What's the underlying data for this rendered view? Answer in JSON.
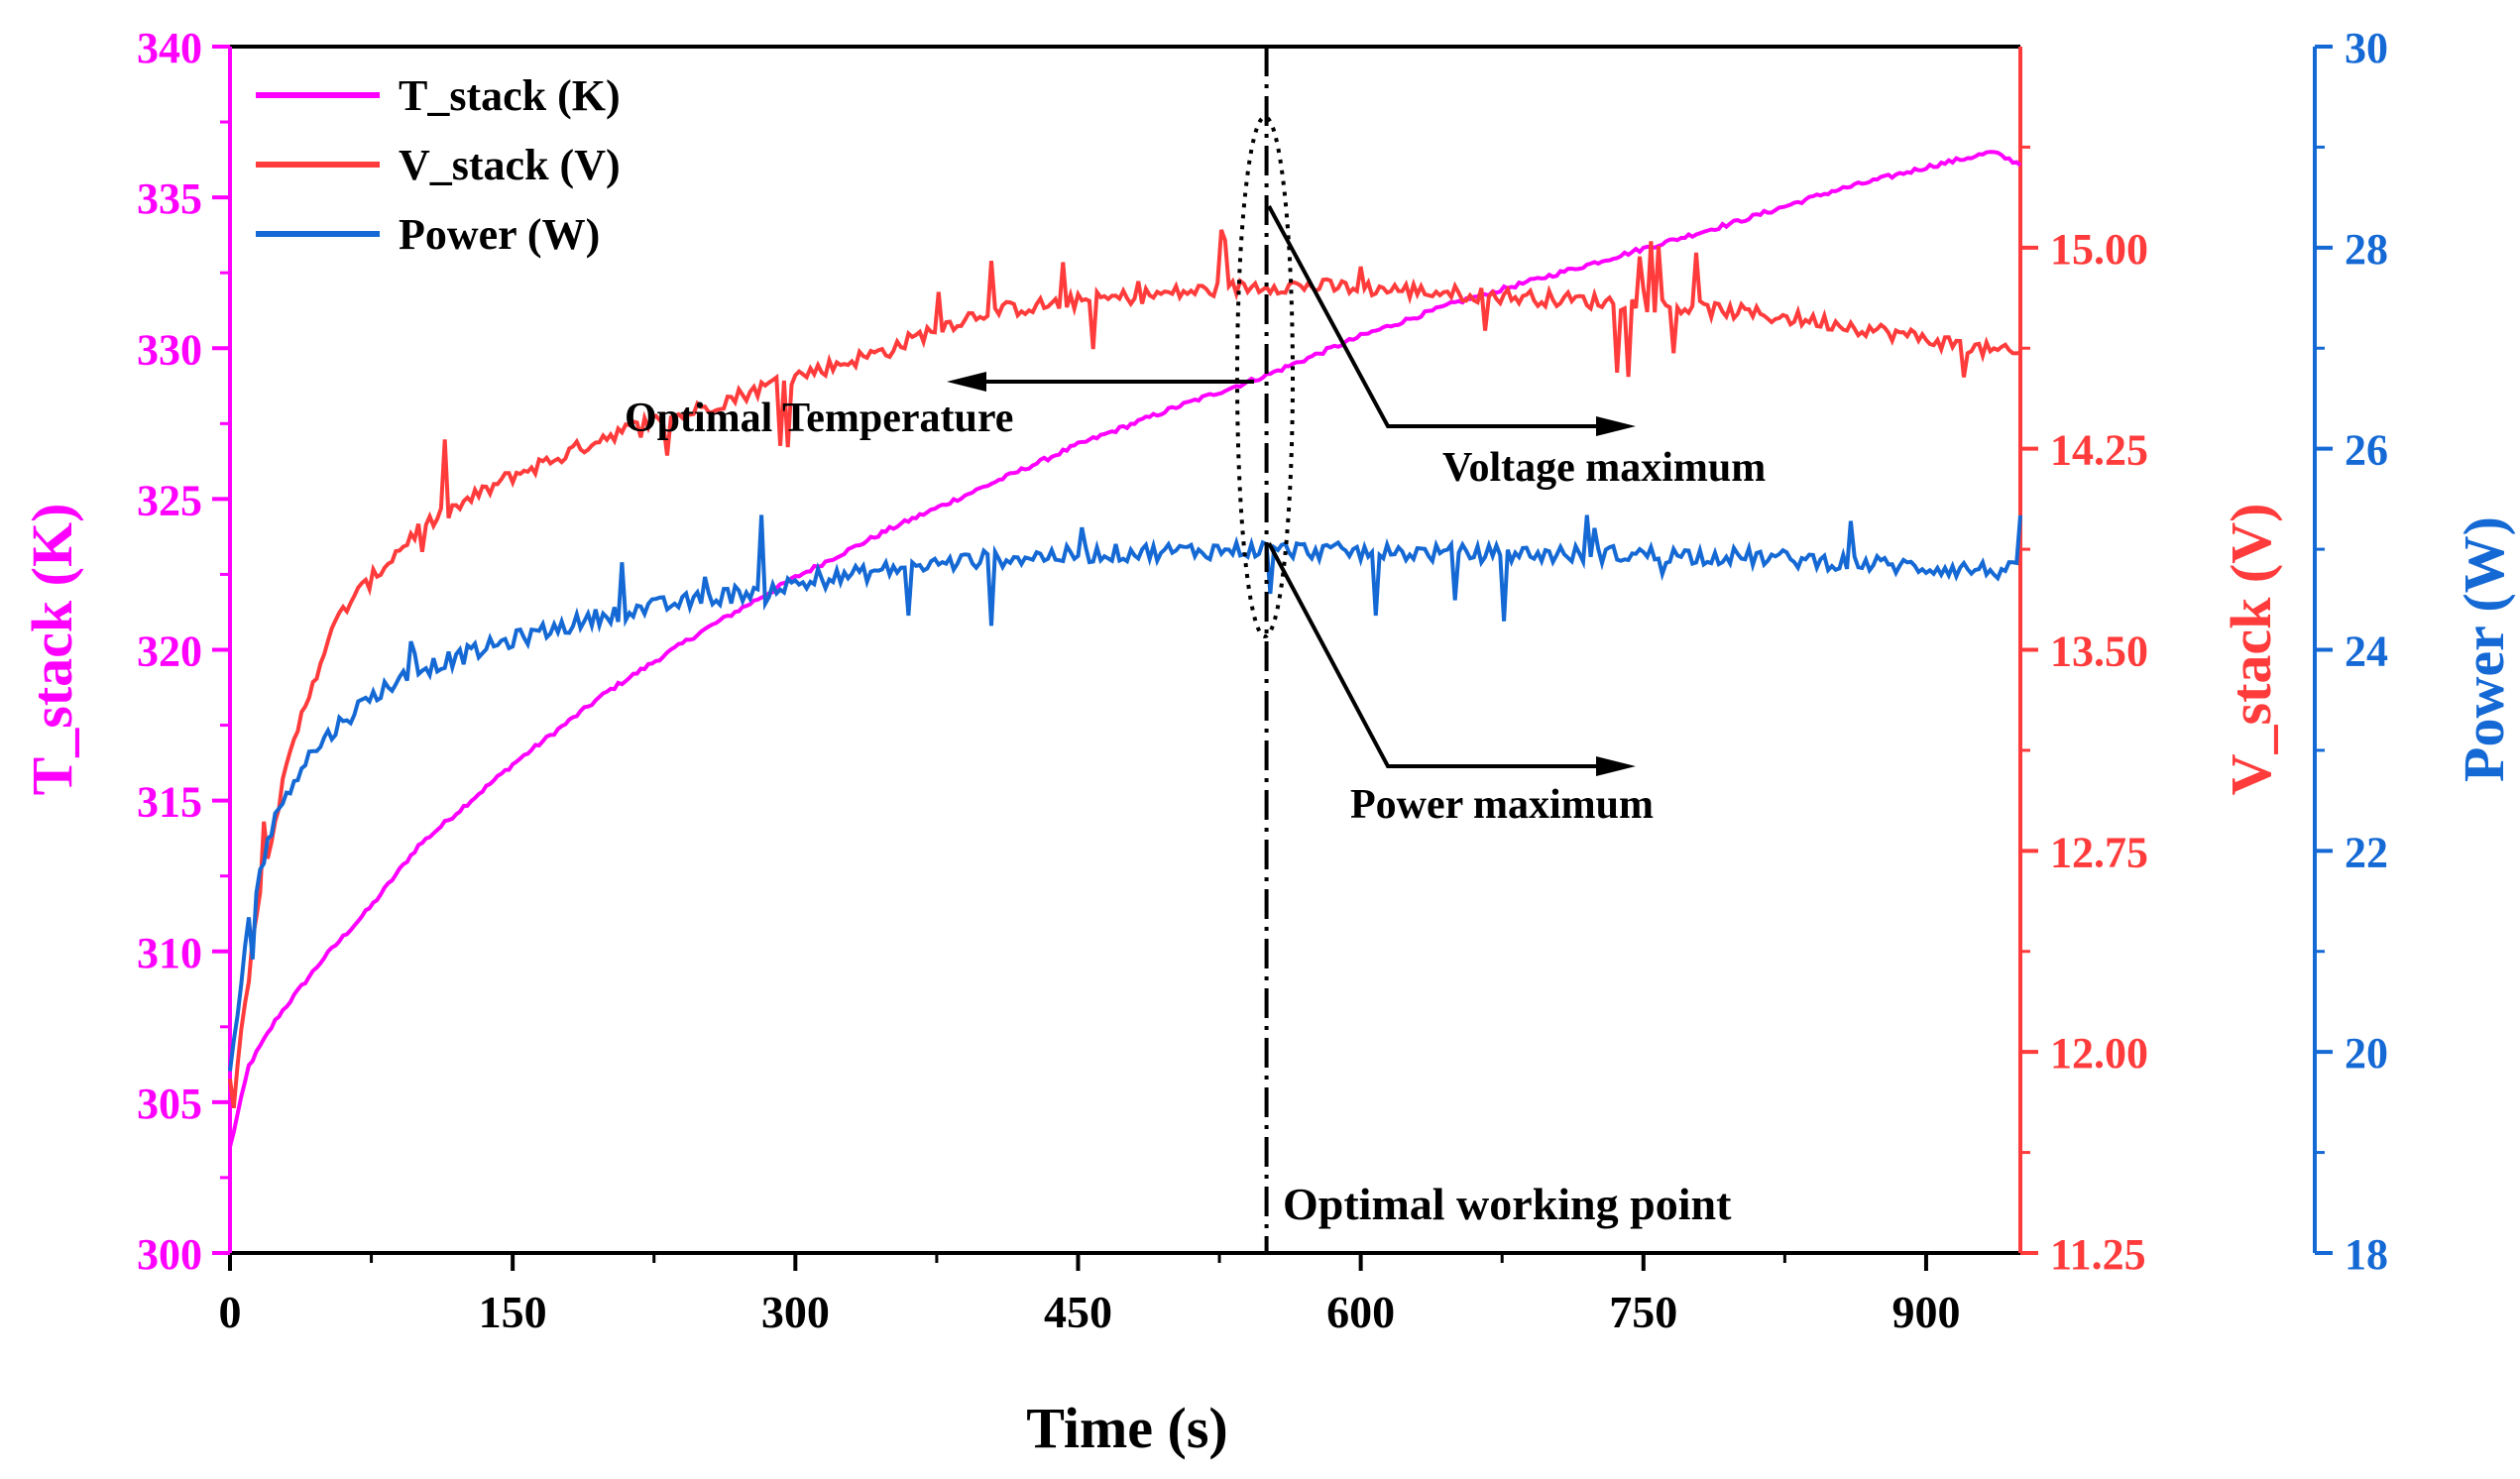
{
  "chart_data": {
    "type": "line",
    "xlabel": "Time (s)",
    "xlim": [
      0,
      950
    ],
    "x_ticks": [
      0,
      150,
      300,
      450,
      600,
      750,
      900
    ],
    "x_tick_labels": [
      "0",
      "150",
      "300",
      "450",
      "600",
      "750",
      "900"
    ],
    "axes": {
      "left": {
        "label": "T_stack (K)",
        "color": "#FF00FF",
        "ylim": [
          300,
          340
        ],
        "ticks": [
          300,
          305,
          310,
          315,
          320,
          325,
          330,
          335,
          340
        ],
        "tick_labels": [
          "300",
          "305",
          "310",
          "315",
          "320",
          "325",
          "330",
          "335",
          "340"
        ]
      },
      "right_inner": {
        "label": "V_stack (V)",
        "color": "#FF3B3B",
        "ylim": [
          11.25,
          15.75
        ],
        "ticks": [
          11.25,
          12.0,
          12.75,
          13.5,
          14.25,
          15.0
        ],
        "tick_labels": [
          "11.25",
          "12.00",
          "12.75",
          "13.50",
          "14.25",
          "15.00"
        ]
      },
      "right_outer": {
        "label": "Power (W)",
        "color": "#1569D4",
        "ylim": [
          18,
          30
        ],
        "ticks": [
          18,
          20,
          22,
          24,
          26,
          28,
          30
        ],
        "tick_labels": [
          "18",
          "20",
          "22",
          "24",
          "26",
          "28",
          "30"
        ]
      }
    },
    "series": [
      {
        "name": "T_stack (K)",
        "axis": "left",
        "color": "#FF00FF",
        "x": [
          0,
          10,
          25,
          50,
          75,
          100,
          150,
          200,
          250,
          300,
          350,
          400,
          450,
          500,
          550,
          600,
          650,
          700,
          750,
          800,
          850,
          900,
          935,
          950
        ],
        "y": [
          303.5,
          306.2,
          307.8,
          309.8,
          311.5,
          313.5,
          316.2,
          318.6,
          320.6,
          322.4,
          324.0,
          325.4,
          326.8,
          328.0,
          329.1,
          330.4,
          331.5,
          332.4,
          333.3,
          334.2,
          335.2,
          336.0,
          336.5,
          336.1
        ]
      },
      {
        "name": "V_stack (V)",
        "axis": "right_inner",
        "color": "#FF3B3B",
        "x": [
          0,
          10,
          20,
          30,
          40,
          50,
          60,
          80,
          100,
          125,
          150,
          175,
          200,
          250,
          300,
          350,
          375,
          400,
          450,
          500,
          550,
          600,
          650,
          700,
          750,
          800,
          850,
          900,
          930,
          950
        ],
        "y": [
          11.65,
          12.35,
          12.75,
          13.05,
          13.3,
          13.5,
          13.65,
          13.8,
          13.95,
          14.05,
          14.15,
          14.22,
          14.3,
          14.4,
          14.52,
          14.62,
          14.7,
          14.76,
          14.8,
          14.83,
          14.86,
          14.85,
          14.83,
          14.81,
          14.79,
          14.76,
          14.72,
          14.66,
          14.62,
          14.6
        ]
      },
      {
        "name": "Power (W)",
        "axis": "right_outer",
        "color": "#1569D4",
        "x": [
          0,
          10,
          20,
          30,
          40,
          50,
          60,
          80,
          100,
          150,
          200,
          250,
          300,
          350,
          400,
          450,
          500,
          550,
          600,
          650,
          700,
          750,
          800,
          850,
          900,
          950
        ],
        "y": [
          19.8,
          21.3,
          22.1,
          22.6,
          22.9,
          23.1,
          23.3,
          23.6,
          23.8,
          24.1,
          24.35,
          24.5,
          24.65,
          24.8,
          24.9,
          24.95,
          24.98,
          25.0,
          24.97,
          24.96,
          24.95,
          24.95,
          24.93,
          24.88,
          24.82,
          24.78
        ]
      }
    ],
    "legend": {
      "placement": "top-left",
      "entries": [
        "T_stack (K)",
        "V_stack (V)",
        "Power (W)"
      ]
    },
    "vline": {
      "x": 550,
      "label": "Optimal working point"
    },
    "annotations": [
      "Optimal Temperature",
      "Voltage maximum",
      "Power maximum"
    ]
  }
}
